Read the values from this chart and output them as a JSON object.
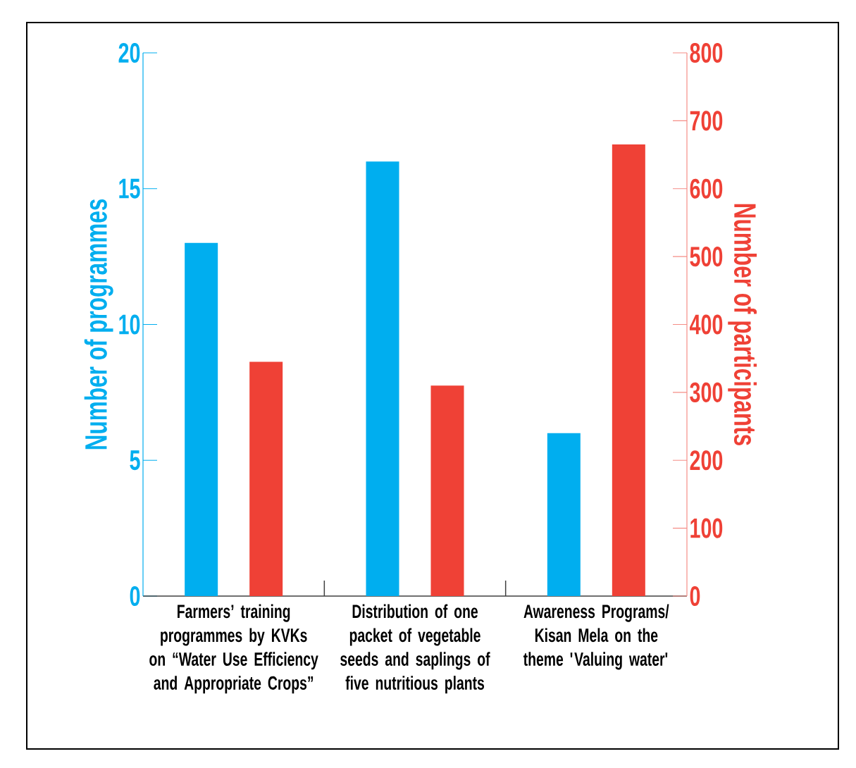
{
  "chart_data": {
    "type": "bar",
    "categories": [
      "Farmers’ training programmes by KVKs on “Water Use Efficiency and Appropriate Crops”",
      "Distribution of one packet of vegetable seeds and saplings of five nutritious plants",
      "Awareness Programs/ Kisan Mela on the theme 'Valuing water'"
    ],
    "series": [
      {
        "color": "#00aeef",
        "values": [
          13,
          16,
          6
        ]
      },
      {
        "color": "#ef4136",
        "values": [
          345,
          310,
          665
        ],
        "axis": "y2"
      }
    ],
    "ylabel": "Number of programmes",
    "y2label": "Number of participants",
    "ylim": [
      0,
      20
    ],
    "yticks": [
      0,
      5,
      10,
      15,
      20
    ],
    "y2lim": [
      0,
      800
    ],
    "y2ticks": [
      0,
      100,
      200,
      300,
      400,
      500,
      600,
      700,
      800
    ]
  }
}
